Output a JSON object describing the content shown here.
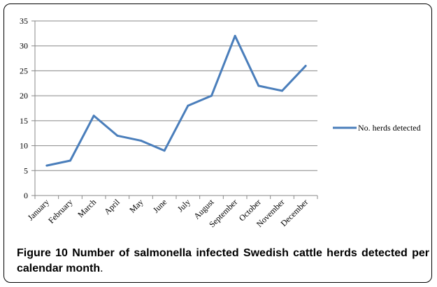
{
  "chart_data": {
    "type": "line",
    "categories": [
      "January",
      "February",
      "March",
      "April",
      "May",
      "June",
      "July",
      "August",
      "September",
      "October",
      "November",
      "December"
    ],
    "series": [
      {
        "name": "No. herds detected",
        "values": [
          6,
          7,
          16,
          12,
          11,
          9,
          18,
          20,
          32,
          22,
          21,
          26
        ],
        "color": "#4a7ebb"
      }
    ],
    "ylim": [
      0,
      35
    ],
    "yticks": [
      0,
      5,
      10,
      15,
      20,
      25,
      30,
      35
    ],
    "grid": true,
    "legend": "right"
  },
  "caption": {
    "label": "Figure 10",
    "text": "Number of salmonella infected Swedish cattle herds detected per calendar month",
    "end": "."
  }
}
